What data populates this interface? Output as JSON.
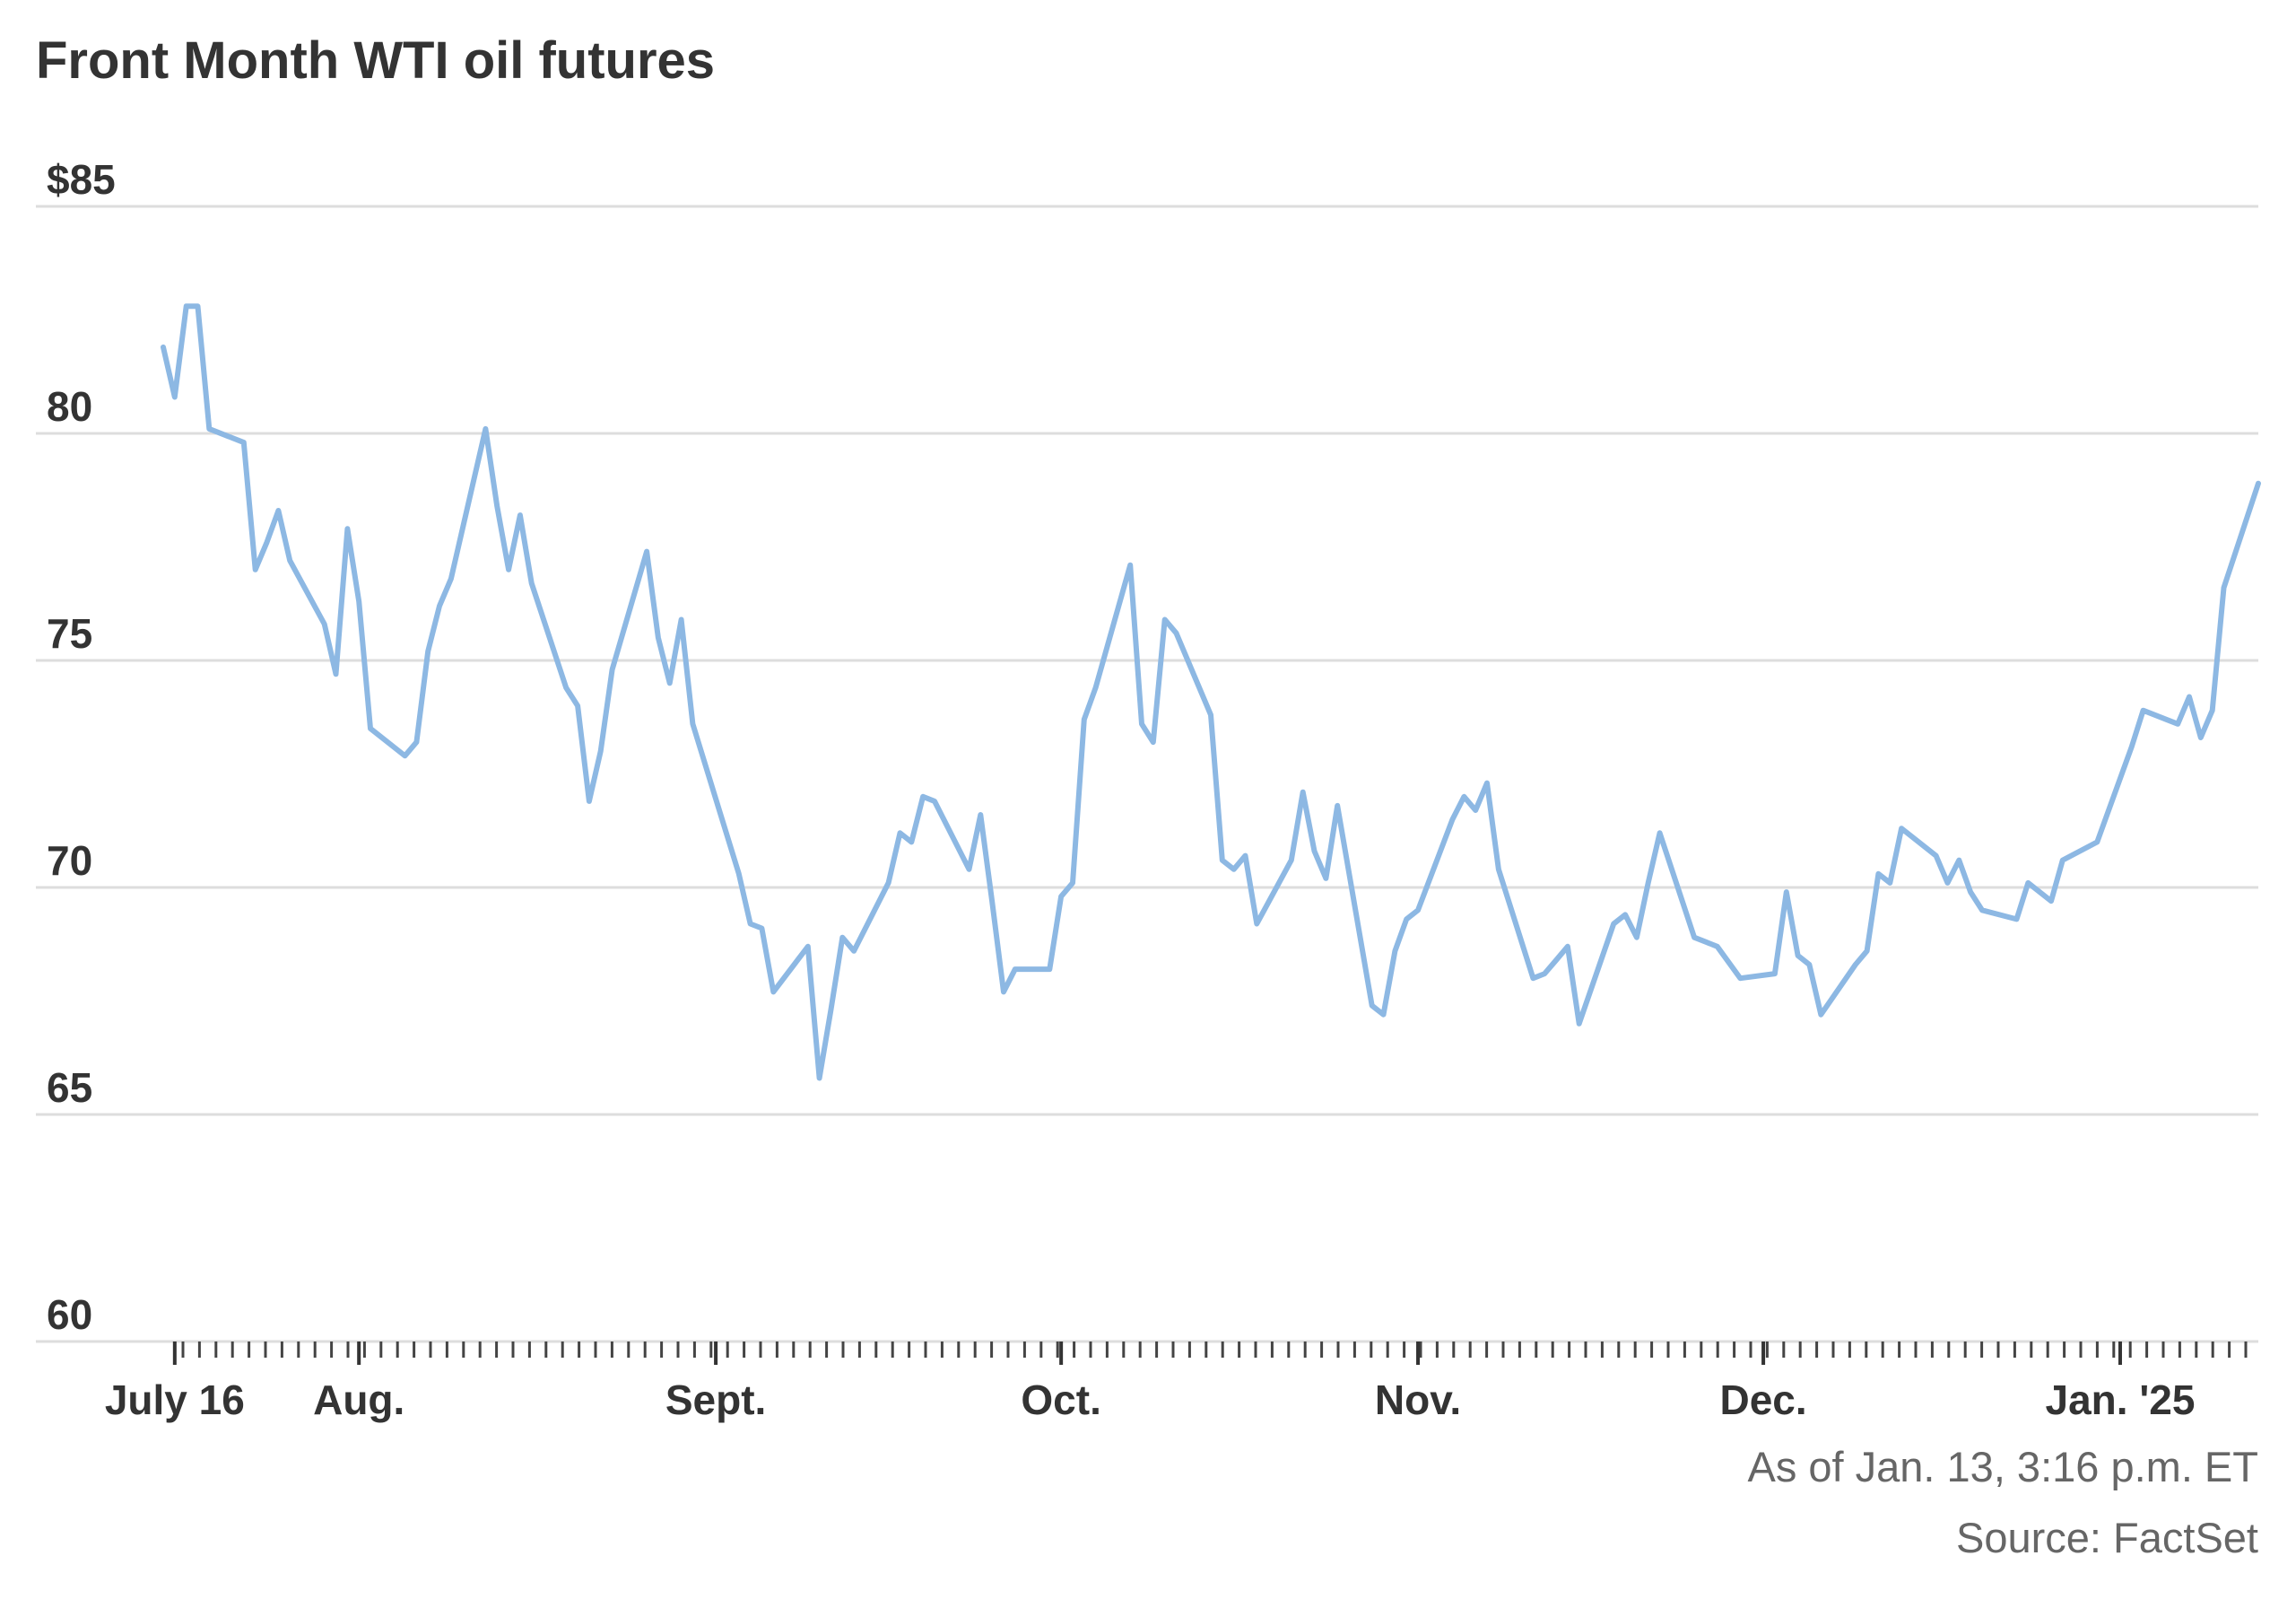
{
  "chart_data": {
    "type": "line",
    "title": "Front Month WTI oil futures",
    "xlabel": "",
    "ylabel": "",
    "ylim": [
      60,
      85
    ],
    "yticks": [
      {
        "value": 85,
        "label": "$85"
      },
      {
        "value": 80,
        "label": "80"
      },
      {
        "value": 75,
        "label": "75"
      },
      {
        "value": 70,
        "label": "70"
      },
      {
        "value": 65,
        "label": "65"
      },
      {
        "value": 60,
        "label": "60"
      }
    ],
    "xlim": [
      "2024-07-15",
      "2025-01-13"
    ],
    "xticks": [
      {
        "date": "2024-07-16",
        "label": "July 16"
      },
      {
        "date": "2024-08-01",
        "label": "Aug."
      },
      {
        "date": "2024-09-01",
        "label": "Sept."
      },
      {
        "date": "2024-10-01",
        "label": "Oct."
      },
      {
        "date": "2024-11-01",
        "label": "Nov."
      },
      {
        "date": "2024-12-01",
        "label": "Dec."
      },
      {
        "date": "2025-01-01",
        "label": "Jan. '25"
      }
    ],
    "grid": true,
    "series": [
      {
        "color": "#8db8e3",
        "points": [
          [
            "2024-07-15",
            81.9
          ],
          [
            "2024-07-16",
            80.8
          ],
          [
            "2024-07-17",
            82.8
          ],
          [
            "2024-07-18",
            82.8
          ],
          [
            "2024-07-19",
            80.1
          ],
          [
            "2024-07-22",
            79.8
          ],
          [
            "2024-07-23",
            77.0
          ],
          [
            "2024-07-24",
            77.6
          ],
          [
            "2024-07-25",
            78.3
          ],
          [
            "2024-07-26",
            77.2
          ],
          [
            "2024-07-29",
            75.8
          ],
          [
            "2024-07-30",
            74.7
          ],
          [
            "2024-07-31",
            77.9
          ],
          [
            "2024-08-01",
            76.3
          ],
          [
            "2024-08-02",
            73.5
          ],
          [
            "2024-08-05",
            72.9
          ],
          [
            "2024-08-06",
            73.2
          ],
          [
            "2024-08-07",
            75.2
          ],
          [
            "2024-08-08",
            76.2
          ],
          [
            "2024-08-09",
            76.8
          ],
          [
            "2024-08-12",
            80.1
          ],
          [
            "2024-08-13",
            78.4
          ],
          [
            "2024-08-14",
            77.0
          ],
          [
            "2024-08-15",
            78.2
          ],
          [
            "2024-08-16",
            76.7
          ],
          [
            "2024-08-19",
            74.4
          ],
          [
            "2024-08-20",
            74.0
          ],
          [
            "2024-08-21",
            71.9
          ],
          [
            "2024-08-22",
            73.0
          ],
          [
            "2024-08-23",
            74.8
          ],
          [
            "2024-08-26",
            77.4
          ],
          [
            "2024-08-27",
            75.5
          ],
          [
            "2024-08-28",
            74.5
          ],
          [
            "2024-08-29",
            75.9
          ],
          [
            "2024-08-30",
            73.6
          ],
          [
            "2024-09-03",
            70.3
          ],
          [
            "2024-09-04",
            69.2
          ],
          [
            "2024-09-05",
            69.1
          ],
          [
            "2024-09-06",
            67.7
          ],
          [
            "2024-09-09",
            68.7
          ],
          [
            "2024-09-10",
            65.8
          ],
          [
            "2024-09-11",
            67.3
          ],
          [
            "2024-09-12",
            68.9
          ],
          [
            "2024-09-13",
            68.6
          ],
          [
            "2024-09-16",
            70.1
          ],
          [
            "2024-09-17",
            71.2
          ],
          [
            "2024-09-18",
            71.0
          ],
          [
            "2024-09-19",
            72.0
          ],
          [
            "2024-09-20",
            71.9
          ],
          [
            "2024-09-23",
            70.4
          ],
          [
            "2024-09-24",
            71.6
          ],
          [
            "2024-09-25",
            69.7
          ],
          [
            "2024-09-26",
            67.7
          ],
          [
            "2024-09-27",
            68.2
          ],
          [
            "2024-09-30",
            68.2
          ],
          [
            "2024-10-01",
            69.8
          ],
          [
            "2024-10-02",
            70.1
          ],
          [
            "2024-10-03",
            73.7
          ],
          [
            "2024-10-04",
            74.4
          ],
          [
            "2024-10-07",
            77.1
          ],
          [
            "2024-10-08",
            73.6
          ],
          [
            "2024-10-09",
            73.2
          ],
          [
            "2024-10-10",
            75.9
          ],
          [
            "2024-10-11",
            75.6
          ],
          [
            "2024-10-14",
            73.8
          ],
          [
            "2024-10-15",
            70.6
          ],
          [
            "2024-10-16",
            70.4
          ],
          [
            "2024-10-17",
            70.7
          ],
          [
            "2024-10-18",
            69.2
          ],
          [
            "2024-10-21",
            70.6
          ],
          [
            "2024-10-22",
            72.1
          ],
          [
            "2024-10-23",
            70.8
          ],
          [
            "2024-10-24",
            70.2
          ],
          [
            "2024-10-25",
            71.8
          ],
          [
            "2024-10-28",
            67.4
          ],
          [
            "2024-10-29",
            67.2
          ],
          [
            "2024-10-30",
            68.6
          ],
          [
            "2024-10-31",
            69.3
          ],
          [
            "2024-11-01",
            69.5
          ],
          [
            "2024-11-04",
            71.5
          ],
          [
            "2024-11-05",
            72.0
          ],
          [
            "2024-11-06",
            71.7
          ],
          [
            "2024-11-07",
            72.3
          ],
          [
            "2024-11-08",
            70.4
          ],
          [
            "2024-11-11",
            68.0
          ],
          [
            "2024-11-12",
            68.1
          ],
          [
            "2024-11-13",
            68.4
          ],
          [
            "2024-11-14",
            68.7
          ],
          [
            "2024-11-15",
            67.0
          ],
          [
            "2024-11-18",
            69.2
          ],
          [
            "2024-11-19",
            69.4
          ],
          [
            "2024-11-20",
            68.9
          ],
          [
            "2024-11-21",
            70.1
          ],
          [
            "2024-11-22",
            71.2
          ],
          [
            "2024-11-25",
            68.9
          ],
          [
            "2024-11-26",
            68.8
          ],
          [
            "2024-11-27",
            68.7
          ],
          [
            "2024-11-29",
            68.0
          ],
          [
            "2024-12-02",
            68.1
          ],
          [
            "2024-12-03",
            69.9
          ],
          [
            "2024-12-04",
            68.5
          ],
          [
            "2024-12-05",
            68.3
          ],
          [
            "2024-12-06",
            67.2
          ],
          [
            "2024-12-09",
            68.3
          ],
          [
            "2024-12-10",
            68.6
          ],
          [
            "2024-12-11",
            70.3
          ],
          [
            "2024-12-12",
            70.1
          ],
          [
            "2024-12-13",
            71.3
          ],
          [
            "2024-12-16",
            70.7
          ],
          [
            "2024-12-17",
            70.1
          ],
          [
            "2024-12-18",
            70.6
          ],
          [
            "2024-12-19",
            69.9
          ],
          [
            "2024-12-20",
            69.5
          ],
          [
            "2024-12-23",
            69.3
          ],
          [
            "2024-12-24",
            70.1
          ],
          [
            "2024-12-26",
            69.7
          ],
          [
            "2024-12-27",
            70.6
          ],
          [
            "2024-12-30",
            71.0
          ],
          [
            "2024-12-31",
            71.7
          ],
          [
            "2025-01-02",
            73.1
          ],
          [
            "2025-01-03",
            73.9
          ],
          [
            "2025-01-06",
            73.6
          ],
          [
            "2025-01-07",
            74.2
          ],
          [
            "2025-01-08",
            73.3
          ],
          [
            "2025-01-09",
            73.9
          ],
          [
            "2025-01-10",
            76.6
          ],
          [
            "2025-01-13",
            78.9
          ]
        ]
      }
    ]
  },
  "footer": {
    "as_of": "As of Jan. 13, 3:16 p.m. ET",
    "source": "Source: FactSet"
  }
}
